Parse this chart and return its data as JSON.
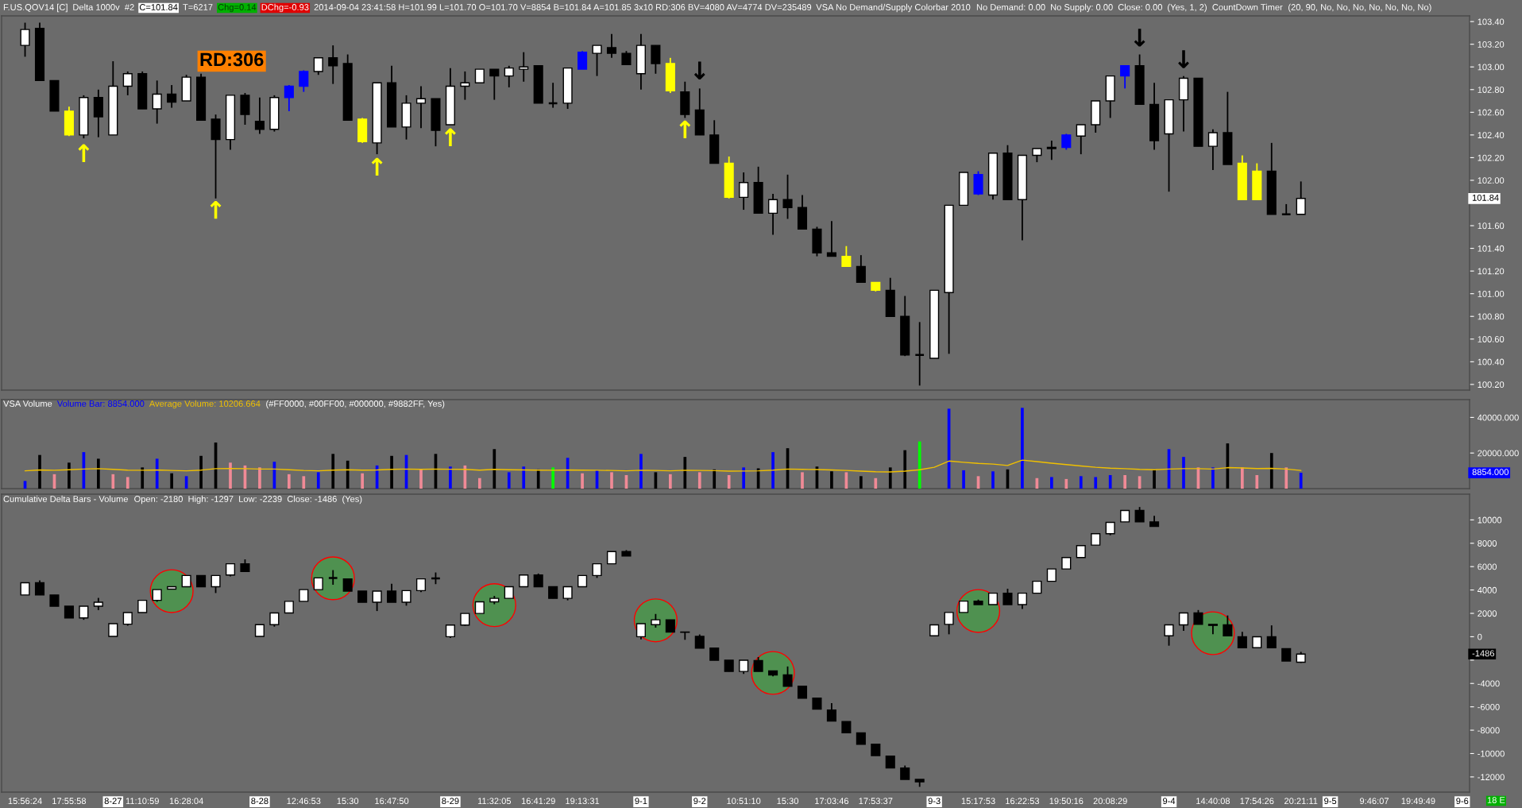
{
  "chart_data": [
    {
      "type": "candlestick",
      "title": "F.US.QOV14 [C]",
      "annotations": [
        "Delta 1000v",
        "#2",
        "C=101.84",
        "T=6217",
        "Chg=0.14",
        "DChg=-0.93",
        "2014-09-04 23:41:58 H=101.99 L=101.70 O=101.70 V=8854 B=101.84 A=101.85 3x10 RD:306 BV=4080 AV=4774 DV=235489",
        "VSA No Demand/Supply Colorbar 2010",
        "No Demand: 0.00",
        "No Supply: 0.00",
        "Close: 0.00",
        "(Yes, 1, 2)",
        "CountDown Timer",
        "(20, 90, No, No, No, No, No, No, No)",
        "RD:306",
        "↑",
        "↑",
        "↑",
        "↑",
        "↑",
        "↓",
        "↓",
        "↓",
        {
          "text": "101.84",
          "y": 101.84
        }
      ],
      "categories": [
        null,
        null,
        null,
        null,
        null,
        null,
        null,
        null,
        null,
        null,
        null,
        null,
        null,
        null,
        null,
        null,
        null,
        null,
        null,
        null,
        null,
        null,
        null,
        null,
        null,
        null,
        null,
        null,
        null,
        null,
        null,
        null,
        null,
        null,
        null,
        null,
        null,
        null,
        null,
        null,
        null,
        null,
        null,
        null,
        null,
        null,
        null,
        null,
        null,
        null,
        null,
        null,
        null,
        null,
        null,
        null,
        null,
        null,
        null,
        null,
        null,
        null,
        null,
        null,
        null,
        null,
        null,
        null,
        null,
        null,
        null,
        null,
        null,
        null,
        null,
        null,
        null,
        null,
        null,
        null,
        null,
        null,
        null,
        null,
        null,
        null,
        null,
        null,
        null,
        null,
        null,
        null,
        null,
        null,
        null,
        null,
        null,
        null,
        null
      ],
      "ohlc": [
        [
          103.19,
          103.39,
          103.09,
          103.33
        ],
        [
          103.34,
          103.39,
          102.88,
          102.88
        ],
        [
          102.88,
          102.88,
          102.61,
          102.61
        ],
        [
          102.61,
          102.65,
          102.39,
          102.4
        ],
        [
          102.4,
          102.75,
          102.37,
          102.73
        ],
        [
          102.73,
          102.8,
          102.38,
          102.56
        ],
        [
          102.4,
          103.05,
          102.4,
          102.83
        ],
        [
          102.83,
          102.96,
          102.75,
          102.94
        ],
        [
          102.94,
          102.96,
          102.63,
          102.63
        ],
        [
          102.63,
          102.88,
          102.5,
          102.76
        ],
        [
          102.76,
          102.84,
          102.64,
          102.69
        ],
        [
          102.7,
          102.93,
          102.7,
          102.91
        ],
        [
          102.91,
          102.94,
          102.53,
          102.53
        ],
        [
          102.54,
          102.58,
          101.84,
          102.36
        ],
        [
          102.36,
          102.75,
          102.27,
          102.75
        ],
        [
          102.75,
          102.77,
          102.49,
          102.58
        ],
        [
          102.52,
          102.73,
          102.41,
          102.45
        ],
        [
          102.45,
          102.75,
          102.43,
          102.73
        ],
        [
          102.73,
          102.84,
          102.61,
          102.83
        ],
        [
          102.83,
          102.97,
          102.78,
          102.96
        ],
        [
          102.96,
          103.08,
          102.93,
          103.08
        ],
        [
          103.08,
          103.19,
          102.85,
          103.01
        ],
        [
          103.03,
          103.11,
          102.53,
          102.53
        ],
        [
          102.54,
          102.55,
          102.33,
          102.34
        ],
        [
          102.33,
          102.86,
          102.23,
          102.86
        ],
        [
          102.86,
          103.01,
          102.47,
          102.47
        ],
        [
          102.47,
          102.75,
          102.36,
          102.68
        ],
        [
          102.68,
          102.83,
          102.46,
          102.72
        ],
        [
          102.72,
          102.72,
          102.3,
          102.44
        ],
        [
          102.49,
          102.99,
          102.49,
          102.83
        ],
        [
          102.83,
          102.96,
          102.71,
          102.86
        ],
        [
          102.86,
          102.98,
          102.86,
          102.98
        ],
        [
          102.98,
          102.98,
          102.71,
          102.92
        ],
        [
          102.92,
          103.01,
          102.82,
          102.99
        ],
        [
          102.98,
          103.13,
          102.87,
          103.0
        ],
        [
          103.01,
          103.01,
          102.68,
          102.68
        ],
        [
          102.68,
          102.86,
          102.64,
          102.68
        ],
        [
          102.68,
          102.99,
          102.63,
          102.99
        ],
        [
          102.98,
          103.14,
          102.98,
          103.13
        ],
        [
          103.12,
          103.19,
          102.92,
          103.19
        ],
        [
          103.17,
          103.29,
          103.08,
          103.12
        ],
        [
          103.12,
          103.14,
          103.02,
          103.02
        ],
        [
          102.94,
          103.29,
          102.8,
          103.19
        ],
        [
          103.19,
          103.19,
          102.94,
          103.03
        ],
        [
          103.03,
          103.08,
          102.77,
          102.79
        ],
        [
          102.78,
          102.87,
          102.55,
          102.58
        ],
        [
          102.62,
          102.81,
          102.4,
          102.4
        ],
        [
          102.4,
          102.53,
          102.15,
          102.15
        ],
        [
          102.15,
          102.21,
          101.84,
          101.85
        ],
        [
          101.85,
          102.07,
          101.74,
          101.98
        ],
        [
          101.98,
          102.12,
          101.71,
          101.71
        ],
        [
          101.71,
          101.88,
          101.52,
          101.83
        ],
        [
          101.83,
          102.05,
          101.66,
          101.76
        ],
        [
          101.76,
          101.87,
          101.57,
          101.57
        ],
        [
          101.57,
          101.59,
          101.33,
          101.36
        ],
        [
          101.36,
          101.64,
          101.33,
          101.33
        ],
        [
          101.33,
          101.42,
          101.24,
          101.24
        ],
        [
          101.24,
          101.34,
          101.1,
          101.1
        ],
        [
          101.1,
          101.1,
          101.02,
          101.03
        ],
        [
          101.03,
          101.14,
          100.8,
          100.8
        ],
        [
          100.8,
          100.98,
          100.45,
          100.46
        ],
        [
          100.46,
          100.75,
          100.19,
          100.46
        ],
        [
          100.43,
          101.03,
          100.43,
          101.03
        ],
        [
          101.01,
          101.78,
          100.47,
          101.78
        ],
        [
          101.78,
          102.07,
          101.78,
          102.07
        ],
        [
          101.88,
          102.08,
          101.87,
          102.05
        ],
        [
          101.87,
          102.24,
          101.83,
          102.24
        ],
        [
          102.24,
          102.31,
          101.83,
          101.83
        ],
        [
          101.83,
          102.22,
          101.47,
          102.22
        ],
        [
          102.22,
          102.28,
          102.16,
          102.28
        ],
        [
          102.28,
          102.35,
          102.18,
          102.29
        ],
        [
          102.29,
          102.41,
          102.27,
          102.4
        ],
        [
          102.39,
          102.49,
          102.23,
          102.49
        ],
        [
          102.49,
          102.7,
          102.42,
          102.7
        ],
        [
          102.7,
          102.92,
          102.55,
          102.92
        ],
        [
          102.92,
          103.01,
          102.81,
          103.01
        ],
        [
          103.01,
          103.11,
          102.67,
          102.67
        ],
        [
          102.67,
          102.86,
          102.27,
          102.35
        ],
        [
          102.41,
          102.71,
          101.9,
          102.71
        ],
        [
          102.71,
          102.92,
          102.43,
          102.9
        ],
        [
          102.9,
          102.9,
          102.3,
          102.3
        ],
        [
          102.3,
          102.45,
          102.09,
          102.42
        ],
        [
          102.42,
          102.78,
          102.14,
          102.14
        ],
        [
          102.15,
          102.22,
          101.83,
          101.83
        ],
        [
          101.83,
          102.15,
          101.83,
          102.08
        ],
        [
          102.08,
          102.33,
          101.7,
          101.7
        ],
        [
          101.7,
          101.79,
          101.7,
          101.7
        ],
        [
          101.7,
          101.99,
          101.7,
          101.84
        ],
        null,
        null,
        null,
        null,
        null,
        null,
        null,
        null,
        null,
        null,
        null
      ],
      "colors": [
        "#ffffff",
        "#000000",
        "#000000",
        "#ffff00",
        "#ffffff",
        "#000000",
        "#ffffff",
        "#ffffff",
        "#000000",
        "#ffffff",
        "#000000",
        "#ffffff",
        "#000000",
        "#000000",
        "#ffffff",
        "#000000",
        "#000000",
        "#ffffff",
        "#0000ff",
        "#0000ff",
        "#ffffff",
        "#000000",
        "#000000",
        "#ffff00",
        "#ffffff",
        "#000000",
        "#ffffff",
        "#ffffff",
        "#000000",
        "#ffffff",
        "#ffffff",
        "#ffffff",
        "#000000",
        "#ffffff",
        "#ffffff",
        "#000000",
        "#000000",
        "#ffffff",
        "#0000ff",
        "#ffffff",
        "#000000",
        "#000000",
        "#ffffff",
        "#000000",
        "#ffff00",
        "#000000",
        "#000000",
        "#000000",
        "#ffff00",
        "#ffffff",
        "#000000",
        "#ffffff",
        "#000000",
        "#000000",
        "#000000",
        "#000000",
        "#ffff00",
        "#000000",
        "#ffff00",
        "#000000",
        "#000000",
        "#000000",
        "#ffffff",
        "#ffffff",
        "#ffffff",
        "#0000ff",
        "#ffffff",
        "#000000",
        "#ffffff",
        "#ffffff",
        "#ffffff",
        "#0000ff",
        "#ffffff",
        "#ffffff",
        "#ffffff",
        "#0000ff",
        "#000000",
        "#000000",
        "#ffffff",
        "#ffffff",
        "#000000",
        "#ffffff",
        "#000000",
        "#ffff00",
        "#ffff00",
        "#000000",
        "#000000",
        "#ffffff",
        null,
        null,
        null,
        null,
        null,
        null,
        null,
        null,
        null,
        null,
        null
      ],
      "ylim": [
        100.15,
        103.45
      ],
      "yticks": [
        {
          "value": 100.2,
          "label": "100.20"
        },
        {
          "value": 100.4,
          "label": "100.40"
        },
        {
          "value": 100.6,
          "label": "100.60"
        },
        {
          "value": 100.8,
          "label": "100.80"
        },
        {
          "value": 101.0,
          "label": "101.00"
        },
        {
          "value": 101.2,
          "label": "101.20"
        },
        {
          "value": 101.4,
          "label": "101.40"
        },
        {
          "value": 101.6,
          "label": "101.60"
        },
        {
          "value": 101.8,
          "label": null
        },
        {
          "value": 102.0,
          "label": "102.00"
        },
        {
          "value": 102.2,
          "label": "102.20"
        },
        {
          "value": 102.4,
          "label": "102.40"
        },
        {
          "value": 102.6,
          "label": "102.60"
        },
        {
          "value": 102.8,
          "label": "102.80"
        },
        {
          "value": 103.0,
          "label": "103.00"
        },
        {
          "value": 103.2,
          "label": "103.20"
        },
        {
          "value": 103.4,
          "label": "103.40"
        }
      ],
      "tick_labels": "y"
    },
    {
      "type": "bar",
      "title": "VSA Volume",
      "legend": "top left",
      "annotations": [
        "(#FF0000, #00FF00, #000000, #9882FF, Yes)",
        "8854.000"
      ],
      "categories": [
        null,
        null,
        null,
        null,
        null,
        null,
        null,
        null,
        null,
        null,
        null,
        null,
        null,
        null,
        null,
        null,
        null,
        null,
        null,
        null,
        null,
        null,
        null,
        null,
        null,
        null,
        null,
        null,
        null,
        null,
        null,
        null,
        null,
        null,
        null,
        null,
        null,
        null,
        null,
        null,
        null,
        null,
        null,
        null,
        null,
        null,
        null,
        null,
        null,
        null,
        null,
        null,
        null,
        null,
        null,
        null,
        null,
        null,
        null,
        null,
        null,
        null,
        null,
        null,
        null,
        null,
        null,
        null,
        null,
        null,
        null,
        null,
        null,
        null,
        null,
        null,
        null,
        null,
        null,
        null,
        null,
        null,
        null,
        null,
        null,
        null,
        null,
        null,
        null,
        null,
        null,
        null,
        null,
        null,
        null,
        null,
        null,
        null,
        null
      ],
      "series": [
        {
          "name": "Volume Bar: 8854.000",
          "type": "bar",
          "color": "#0000ff",
          "values": [
            4300,
            18900,
            8100,
            14600,
            20500,
            16800,
            8100,
            6500,
            11900,
            16800,
            8600,
            7000,
            18400,
            25900,
            14600,
            13000,
            11900,
            15100,
            8100,
            7000,
            9200,
            19500,
            15700,
            8600,
            13000,
            18400,
            18900,
            10800,
            19500,
            12400,
            13000,
            5900,
            22200,
            9200,
            12400,
            10800,
            11900,
            17300,
            8600,
            10300,
            9200,
            7600,
            19500,
            9200,
            8100,
            17800,
            9200,
            10800,
            7600,
            11900,
            11400,
            20500,
            22700,
            9200,
            12400,
            9700,
            9200,
            7000,
            5900,
            11900,
            21600,
            26500,
            null,
            44900,
            10300,
            7000,
            9700,
            10800,
            45400,
            5900,
            6500,
            5400,
            7000,
            6500,
            7600,
            7600,
            7000,
            10800,
            22200,
            17800,
            11900,
            11900,
            25400,
            11900,
            7600,
            20000,
            11900,
            8900,
            null,
            null,
            null,
            null,
            null,
            null,
            null,
            null,
            null,
            null,
            null
          ],
          "colors": [
            "#0000ff",
            "#000000",
            "#f08a96",
            "#000000",
            "#0000ff",
            "#000000",
            "#f08a96",
            "#f08a96",
            "#000000",
            "#0000ff",
            "#000000",
            "#0000ff",
            "#000000",
            "#000000",
            "#f08a96",
            "#f08a96",
            "#f08a96",
            "#0000ff",
            "#f08a96",
            "#f08a96",
            "#0000ff",
            "#000000",
            "#000000",
            "#f08a96",
            "#0000ff",
            "#000000",
            "#0000ff",
            "#f08a96",
            "#000000",
            "#0000ff",
            "#f08a96",
            "#f08a96",
            "#000000",
            "#0000ff",
            "#0000ff",
            "#000000",
            "#00ff00",
            "#0000ff",
            "#f08a96",
            "#0000ff",
            "#f08a96",
            "#f08a96",
            "#0000ff",
            "#000000",
            "#f08a96",
            "#000000",
            "#f08a96",
            "#000000",
            "#f08a96",
            "#0000ff",
            "#000000",
            "#0000ff",
            "#000000",
            "#f08a96",
            "#000000",
            "#000000",
            "#f08a96",
            "#000000",
            "#f08a96",
            "#000000",
            "#000000",
            "#00ff00",
            "#0000ff",
            "#0000ff",
            "#0000ff",
            "#f08a96",
            "#0000ff",
            "#000000",
            "#0000ff",
            "#f08a96",
            "#0000ff",
            "#f08a96",
            "#0000ff",
            "#0000ff",
            "#0000ff",
            "#f08a96",
            "#f08a96",
            "#000000",
            "#0000ff",
            "#0000ff",
            "#f08a96",
            "#0000ff",
            "#000000",
            "#f08a96",
            "#f08a96",
            "#000000",
            "#f08a96",
            "#0000ff",
            null,
            null,
            null,
            null,
            null,
            null,
            null,
            null,
            null,
            null,
            null
          ]
        },
        {
          "name": "Average Volume: 10206.664",
          "type": "line",
          "color": "#f0c000",
          "values": [
            10000,
            10500,
            10300,
            10600,
            11000,
            11200,
            10800,
            10400,
            10300,
            10500,
            10200,
            10000,
            10400,
            11200,
            11300,
            11200,
            11000,
            11000,
            10600,
            10200,
            10000,
            10400,
            10600,
            10400,
            10500,
            10800,
            11000,
            10800,
            11000,
            10900,
            10800,
            10400,
            10800,
            10600,
            10500,
            10400,
            10300,
            10500,
            10400,
            10300,
            10200,
            10000,
            10300,
            10200,
            10000,
            10300,
            10200,
            10100,
            9800,
            9900,
            10000,
            10400,
            11000,
            10800,
            10700,
            10500,
            10200,
            9800,
            9500,
            9400,
            9800,
            10600,
            12000,
            15500,
            14800,
            14200,
            13800,
            13000,
            16000,
            15200,
            14300,
            13500,
            12700,
            12000,
            11500,
            11200,
            10800,
            10600,
            11000,
            11200,
            11200,
            11000,
            11800,
            11600,
            11300,
            11400,
            11000,
            10200,
            null,
            null,
            null,
            null,
            null,
            null,
            null,
            null,
            null,
            null,
            null
          ]
        }
      ],
      "ylim": [
        0,
        50000
      ],
      "yticks": [
        {
          "value": 20000,
          "label": "20000.000"
        },
        {
          "value": 40000,
          "label": "40000.000"
        }
      ],
      "tick_labels": "y"
    },
    {
      "type": "candlestick",
      "title": "Cumulative Delta Bars - Volume",
      "annotations": [
        "Open: -2180  High: -1297  Low: -2239  Close: -1486  (Yes)",
        "18 E",
        {
          "text": "-1486",
          "y": -1486
        }
      ],
      "categories": [
        "15:56:24",
        null,
        null,
        "17:55:58",
        null,
        null,
        "8-27",
        null,
        "11:10:59",
        null,
        null,
        "16:28:04",
        null,
        null,
        null,
        null,
        "8-28",
        null,
        null,
        "12:46:53",
        null,
        null,
        "15:30",
        null,
        null,
        "16:47:50",
        null,
        null,
        null,
        "8-29",
        null,
        null,
        "11:32:05",
        null,
        null,
        "16:41:29",
        null,
        null,
        "19:13:31",
        null,
        null,
        null,
        "9-1",
        null,
        null,
        null,
        "9-2",
        null,
        null,
        "10:51:10",
        null,
        null,
        "15:30",
        null,
        null,
        "17:03:46",
        null,
        null,
        "17:53:37",
        null,
        null,
        null,
        "9-3",
        null,
        null,
        "15:17:53",
        null,
        null,
        "16:22:53",
        null,
        null,
        "19:50:16",
        null,
        null,
        "20:08:29",
        null,
        null,
        null,
        "9-4",
        null,
        null,
        "14:40:08",
        null,
        null,
        "17:54:26",
        null,
        null,
        "20:21:11",
        null,
        "9-5",
        null,
        null,
        "9:46:07",
        null,
        null,
        "19:49:49",
        null,
        null,
        "9-6"
      ],
      "ohlc": [
        [
          3573,
          4616,
          3573,
          4616
        ],
        [
          4616,
          4825,
          3573,
          3573
        ],
        [
          3573,
          3573,
          2614,
          2614
        ],
        [
          2614,
          2614,
          1613,
          1613
        ],
        [
          1613,
          2614,
          1446,
          2614
        ],
        [
          2614,
          3323,
          2280,
          2948
        ],
        [
          28,
          1112,
          28,
          1112
        ],
        [
          1070,
          2072,
          946,
          2072
        ],
        [
          2072,
          3114,
          2072,
          3114
        ],
        [
          3114,
          4032,
          2989,
          4032
        ],
        [
          4074,
          4282,
          4074,
          4282
        ],
        [
          4282,
          5242,
          4282,
          5242
        ],
        [
          5242,
          5242,
          4282,
          4282
        ],
        [
          4282,
          5242,
          3740,
          5242
        ],
        [
          5283,
          6243,
          5157,
          6243
        ],
        [
          6243,
          6618,
          5575,
          5575
        ],
        [
          28,
          1029,
          28,
          1029
        ],
        [
          1029,
          2030,
          862,
          2030
        ],
        [
          2030,
          3031,
          2030,
          3031
        ],
        [
          3031,
          4032,
          3031,
          4032
        ],
        [
          4032,
          5033,
          4032,
          5033
        ],
        [
          5033,
          5700,
          4449,
          5033
        ],
        [
          4950,
          4950,
          3907,
          3907
        ],
        [
          3907,
          3907,
          2948,
          2948
        ],
        [
          2948,
          3907,
          2197,
          3907
        ],
        [
          3907,
          4533,
          2948,
          2948
        ],
        [
          2948,
          3949,
          2656,
          3949
        ],
        [
          3949,
          4950,
          3824,
          4950
        ],
        [
          5000,
          5500,
          4500,
          5000
        ],
        [
          0,
          1000,
          -100,
          1000
        ],
        [
          1000,
          1988,
          945,
          1988
        ],
        [
          1988,
          2989,
          1988,
          2989
        ],
        [
          2989,
          3490,
          2781,
          3281
        ],
        [
          3281,
          4282,
          3281,
          4282
        ],
        [
          4282,
          5283,
          4282,
          5283
        ],
        [
          5283,
          5408,
          4282,
          4282
        ],
        [
          4282,
          4282,
          3281,
          3281
        ],
        [
          3281,
          4282,
          3114,
          4282
        ],
        [
          4282,
          5242,
          4282,
          5242
        ],
        [
          5242,
          6243,
          5033,
          6243
        ],
        [
          6243,
          7285,
          6243,
          7285
        ],
        [
          7285,
          7411,
          6910,
          6910
        ],
        [
          0,
          1112,
          -222,
          1112
        ],
        [
          1029,
          1947,
          779,
          1446
        ],
        [
          1446,
          1446,
          403,
          403
        ],
        [
          403,
          403,
          -264,
          380
        ],
        [
          28,
          194,
          -973,
          -973
        ],
        [
          -973,
          -973,
          -2016,
          -2016
        ],
        [
          -2016,
          -2016,
          -2975,
          -2975
        ],
        [
          -2975,
          -2016,
          -3184,
          -2016
        ],
        [
          -2039,
          -1742,
          -2971,
          -2971
        ],
        [
          -2929,
          -2929,
          -3395,
          -3268
        ],
        [
          -3268,
          -2547,
          -4243,
          -4243
        ],
        [
          -4243,
          -4243,
          -5260,
          -5260
        ],
        [
          -5260,
          -5260,
          -6193,
          -6193
        ],
        [
          -6278,
          -5684,
          -7210,
          -7210
        ],
        [
          -7253,
          -7253,
          -8228,
          -8228
        ],
        [
          -8228,
          -8228,
          -9202,
          -9202
        ],
        [
          -9202,
          -9202,
          -10177,
          -10177
        ],
        [
          -10220,
          -10220,
          -11237,
          -11237
        ],
        [
          -11237,
          -11026,
          -12212,
          -12212
        ],
        [
          -12212,
          -12212,
          -12848,
          -12424
        ],
        [
          80,
          1014,
          80,
          1014
        ],
        [
          1056,
          2073,
          208,
          2073
        ],
        [
          2073,
          3048,
          2073,
          3048
        ],
        [
          3048,
          3175,
          2752,
          2752
        ],
        [
          2752,
          3726,
          2752,
          3726
        ],
        [
          3726,
          4108,
          2752,
          2752
        ],
        [
          2752,
          3726,
          2370,
          3726
        ],
        [
          3726,
          4744,
          3726,
          4744
        ],
        [
          4744,
          5803,
          4744,
          5803
        ],
        [
          5803,
          6778,
          5803,
          6778
        ],
        [
          6778,
          7796,
          6778,
          7796
        ],
        [
          7838,
          8813,
          7838,
          8813
        ],
        [
          8813,
          9788,
          8686,
          9788
        ],
        [
          9830,
          10806,
          9830,
          10806
        ],
        [
          10806,
          11102,
          9830,
          9830
        ],
        [
          9830,
          10339,
          9449,
          9449
        ],
        [
          80,
          1014,
          -767,
          1014
        ],
        [
          1014,
          2031,
          505,
          2031
        ],
        [
          2031,
          2285,
          1056,
          1056
        ],
        [
          1056,
          1056,
          208,
          971
        ],
        [
          1014,
          1819,
          80,
          80
        ],
        [
          -5,
          420,
          -938,
          -938
        ],
        [
          -938,
          -5,
          -938,
          -5
        ],
        [
          -5,
          971,
          -938,
          -938
        ],
        [
          -1021,
          -1021,
          -2081,
          -2081
        ],
        [
          -2180,
          -1297,
          -2239,
          -1486
        ],
        null,
        null,
        null,
        null,
        null,
        null,
        null,
        null,
        null,
        null,
        null
      ],
      "colors": [
        "#ffffff",
        "#000000",
        "#000000",
        "#000000",
        "#ffffff",
        "#ffffff",
        "#ffffff",
        "#ffffff",
        "#ffffff",
        "#ffffff",
        "#ffffff",
        "#ffffff",
        "#000000",
        "#ffffff",
        "#ffffff",
        "#000000",
        "#ffffff",
        "#ffffff",
        "#ffffff",
        "#ffffff",
        "#ffffff",
        "#000000",
        "#000000",
        "#000000",
        "#ffffff",
        "#000000",
        "#ffffff",
        "#ffffff",
        "#000000",
        "#ffffff",
        "#ffffff",
        "#ffffff",
        "#ffffff",
        "#ffffff",
        "#ffffff",
        "#000000",
        "#000000",
        "#ffffff",
        "#ffffff",
        "#ffffff",
        "#ffffff",
        "#000000",
        "#ffffff",
        "#ffffff",
        "#000000",
        "#000000",
        "#000000",
        "#000000",
        "#000000",
        "#ffffff",
        "#000000",
        "#000000",
        "#000000",
        "#000000",
        "#000000",
        "#000000",
        "#000000",
        "#000000",
        "#000000",
        "#000000",
        "#000000",
        "#000000",
        "#ffffff",
        "#ffffff",
        "#ffffff",
        "#000000",
        "#ffffff",
        "#000000",
        "#ffffff",
        "#ffffff",
        "#ffffff",
        "#ffffff",
        "#ffffff",
        "#ffffff",
        "#ffffff",
        "#ffffff",
        "#000000",
        "#000000",
        "#ffffff",
        "#ffffff",
        "#000000",
        "#000000",
        "#000000",
        "#000000",
        "#ffffff",
        "#000000",
        "#000000",
        "#ffffff",
        null,
        null,
        null,
        null,
        null,
        null,
        null,
        null,
        null,
        null,
        null
      ],
      "series": [
        {
          "type": "scatter",
          "color": "#4f9150",
          "marker": "circle",
          "values": [
            null,
            null,
            null,
            null,
            null,
            null,
            null,
            null,
            null,
            null,
            3900,
            null,
            null,
            null,
            null,
            null,
            null,
            null,
            null,
            null,
            null,
            5000,
            null,
            null,
            null,
            null,
            null,
            null,
            null,
            null,
            null,
            null,
            2700,
            null,
            null,
            null,
            null,
            null,
            null,
            null,
            null,
            null,
            null,
            1400,
            null,
            null,
            null,
            null,
            null,
            null,
            null,
            -3100,
            null,
            null,
            null,
            null,
            null,
            null,
            null,
            null,
            null,
            null,
            null,
            null,
            null,
            2200,
            null,
            null,
            null,
            null,
            null,
            null,
            null,
            null,
            null,
            null,
            null,
            null,
            null,
            null,
            null,
            300,
            null,
            null,
            null,
            null,
            null,
            null,
            null,
            null,
            null,
            null,
            null,
            null,
            null,
            null,
            null,
            null,
            null
          ]
        }
      ],
      "ylim": [
        -13300,
        12200
      ],
      "yticks": [
        -12000,
        -10000,
        -8000,
        -6000,
        -4000,
        {
          "value": -2000,
          "label": null
        },
        0,
        2000,
        4000,
        6000,
        8000,
        10000
      ]
    }
  ]
}
